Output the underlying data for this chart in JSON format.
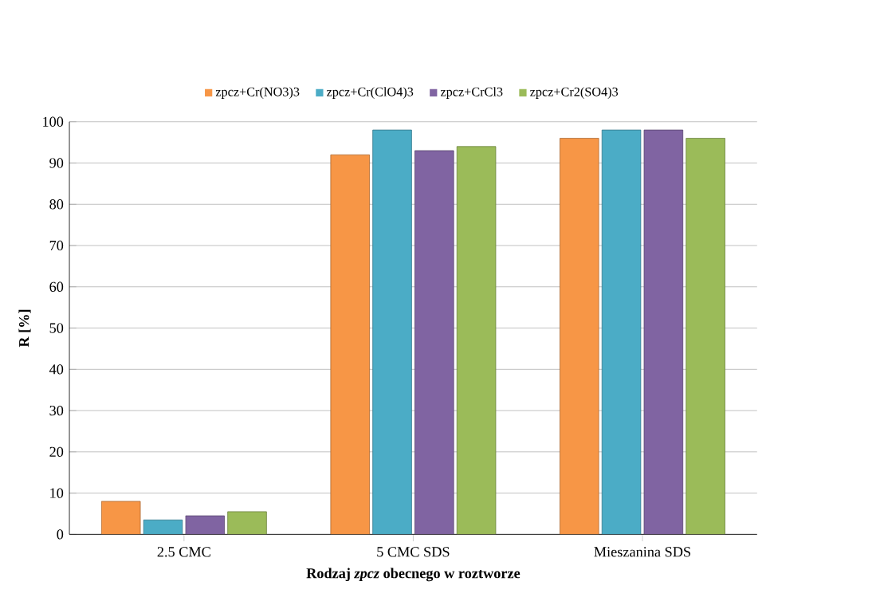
{
  "chart_data": {
    "type": "bar",
    "xlabel": "Rodzaj *zpcz* obecnego w roztworze",
    "ylabel": "R [%]",
    "categories": [
      "2.5 CMC",
      "5 CMC SDS",
      "Mieszanina SDS"
    ],
    "series": [
      {
        "name": "zpcz+Cr(NO3)3",
        "color": "#f79646",
        "values": [
          8,
          92,
          96
        ]
      },
      {
        "name": "zpcz+Cr(ClO4)3",
        "color": "#4bacc6",
        "values": [
          3.5,
          98,
          98
        ]
      },
      {
        "name": "zpcz+CrCl3",
        "color": "#8064a2",
        "values": [
          4.5,
          93,
          98
        ]
      },
      {
        "name": "zpcz+Cr2(SO4)3",
        "color": "#9bbb59",
        "values": [
          5.5,
          94,
          96
        ]
      }
    ],
    "ylim": [
      0,
      100
    ],
    "yticks": [
      0,
      10,
      20,
      30,
      40,
      50,
      60,
      70,
      80,
      90,
      100
    ],
    "grid": "y",
    "legend": "top"
  }
}
